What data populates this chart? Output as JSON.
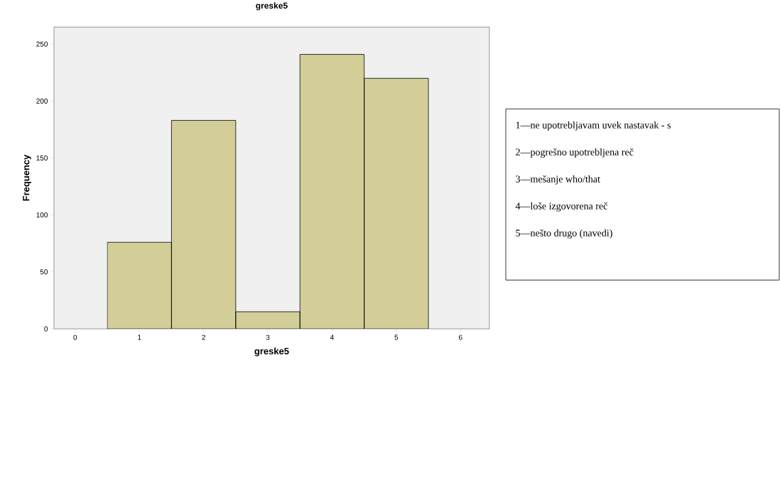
{
  "chart_data": {
    "type": "histogram",
    "title": "greske5",
    "xlabel": "greske5",
    "ylabel": "Frequency",
    "bins": [
      0.5,
      1.5,
      2.5,
      3.5,
      4.5,
      5.5
    ],
    "values": [
      76,
      183,
      15,
      241,
      220
    ],
    "color": "#d3ce97",
    "xlim": [
      -0.33,
      6.45
    ],
    "ylim": [
      0,
      265
    ],
    "xticks": [
      0,
      1,
      2,
      3,
      4,
      5,
      6
    ],
    "yticks": [
      0,
      50,
      100,
      150,
      200,
      250
    ],
    "grid": false,
    "annotations": [
      "1—ne upotrebljavam uvek nastavak - s",
      "2—pogrešno upotrebljena reč",
      "3—mešanje who/that",
      "4—loše izgovorena reč",
      "5—nešto drugo (navedi)"
    ]
  }
}
